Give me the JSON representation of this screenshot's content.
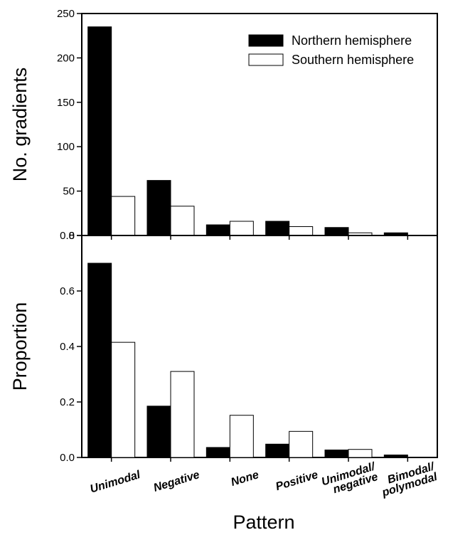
{
  "colors": {
    "northern": "#000000",
    "southern": "#ffffff",
    "stroke": "#000000"
  },
  "legend": {
    "placement": "top-right",
    "items": [
      {
        "label": "Northern hemisphere",
        "color": "#000000"
      },
      {
        "label": "Southern hemisphere",
        "color": "#ffffff"
      }
    ]
  },
  "xlabel": "Pattern",
  "category_labels": [
    [
      "Unimodal"
    ],
    [
      "Negative"
    ],
    [
      "None"
    ],
    [
      "Positive"
    ],
    [
      "Unimodal/",
      "negative"
    ],
    [
      "Bimodal/",
      "polymodal"
    ]
  ],
  "chart_data": [
    {
      "type": "bar",
      "panel": "top",
      "categories": [
        "Unimodal",
        "Negative",
        "None",
        "Positive",
        "Unimodal/negative",
        "Bimodal/polymodal"
      ],
      "series": [
        {
          "name": "Northern hemisphere",
          "values": [
            235,
            62,
            12,
            16,
            9,
            3
          ]
        },
        {
          "name": "Southern hemisphere",
          "values": [
            44,
            33,
            16,
            10,
            3,
            0
          ]
        }
      ],
      "ylabel": "No. gradients",
      "ylim": [
        0,
        250
      ],
      "yticks": [
        0,
        50,
        100,
        150,
        200,
        250
      ],
      "ytick_labels": [
        "0",
        "50",
        "100",
        "150",
        "200",
        "250"
      ],
      "grid": false
    },
    {
      "type": "bar",
      "panel": "bottom",
      "categories": [
        "Unimodal",
        "Negative",
        "None",
        "Positive",
        "Unimodal/negative",
        "Bimodal/polymodal"
      ],
      "series": [
        {
          "name": "Northern hemisphere",
          "values": [
            0.7,
            0.185,
            0.036,
            0.048,
            0.027,
            0.009
          ]
        },
        {
          "name": "Southern hemisphere",
          "values": [
            0.415,
            0.31,
            0.152,
            0.094,
            0.029,
            0.0
          ]
        }
      ],
      "ylabel": "Proportion",
      "ylim": [
        0,
        0.8
      ],
      "yticks": [
        0.0,
        0.2,
        0.4,
        0.6,
        0.8
      ],
      "ytick_labels": [
        "0.0",
        "0.2",
        "0.4",
        "0.6",
        "0.8"
      ],
      "grid": false
    }
  ]
}
